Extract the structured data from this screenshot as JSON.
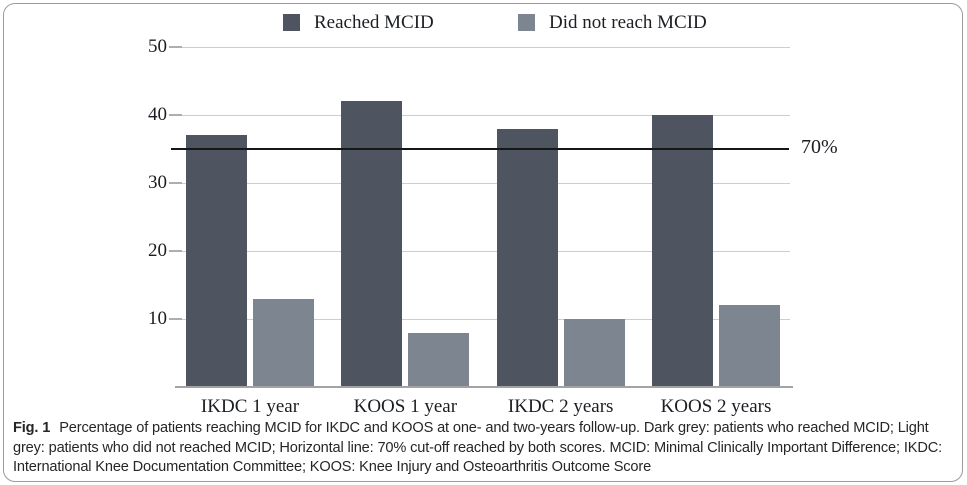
{
  "legend": {
    "items": [
      {
        "label": "Reached MCID",
        "color": "#4e5460"
      },
      {
        "label": "Did not reach MCID",
        "color": "#7d8591"
      }
    ]
  },
  "chart_data": {
    "type": "bar",
    "title": "",
    "xlabel": "",
    "ylabel": "",
    "categories": [
      "IKDC 1 year",
      "KOOS 1 year",
      "IKDC 2 years",
      "KOOS 2 years"
    ],
    "series": [
      {
        "name": "Reached MCID",
        "color": "#4e5460",
        "values": [
          37,
          42,
          38,
          40
        ]
      },
      {
        "name": "Did not reach MCID",
        "color": "#7d8591",
        "values": [
          13,
          8,
          10,
          12
        ]
      }
    ],
    "ylim": [
      0,
      50
    ],
    "yticks": [
      10,
      20,
      30,
      40,
      50
    ],
    "grid": true,
    "legend_position": "top",
    "reference_line": {
      "value": 35,
      "label": "70%",
      "color": "#161616"
    },
    "colors": {
      "gridline": "#cdcdcd",
      "axis_line": "#a3a3a3",
      "tick": "#aeaeae",
      "frame_border": "#9b9b9b"
    }
  },
  "caption": {
    "fig_label": "Fig. 1",
    "text": "Percentage of patients reaching MCID for IKDC and KOOS at one- and two-years follow-up. Dark grey: patients who reached MCID; Light grey: patients who did not reached MCID; Horizontal line: 70% cut-off reached by both scores. MCID: Minimal Clinically Important Difference; IKDC: International Knee Documentation Committee; KOOS: Knee Injury and Osteoarthritis Outcome Score"
  }
}
